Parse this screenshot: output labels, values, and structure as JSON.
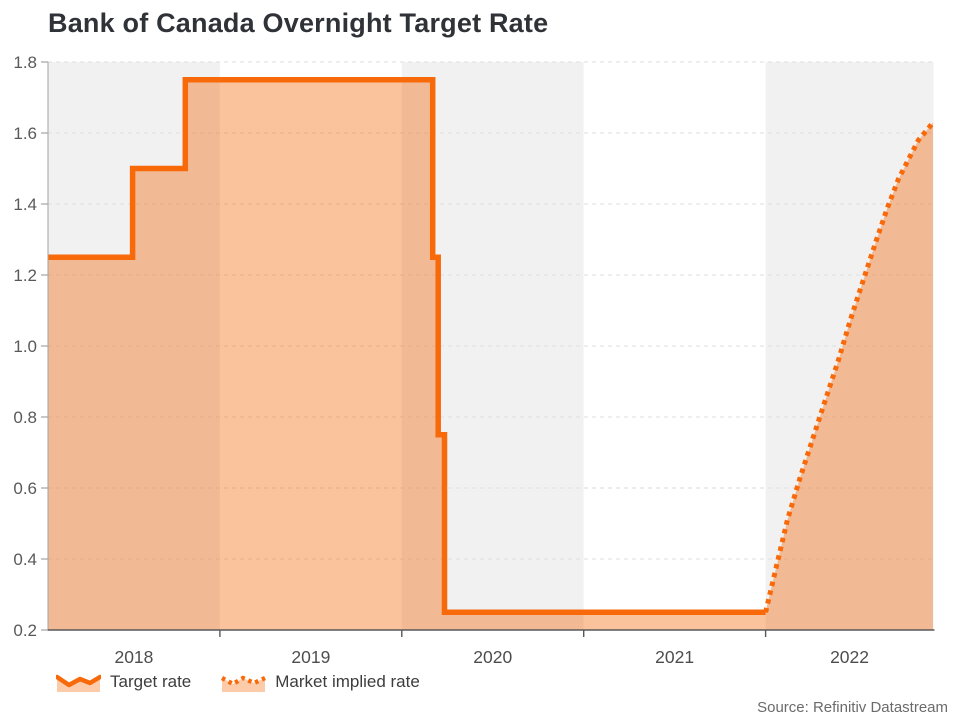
{
  "title": "Bank of Canada Overnight Target Rate",
  "source": "Source: Refinitiv Datastream",
  "legend": {
    "target_rate_label": "Target rate",
    "market_implied_label": "Market implied rate"
  },
  "colors": {
    "line": "#f8690a",
    "area_fill": "rgba(246,105,8,0.40)",
    "legend_fill": "rgba(246,105,8,0.35)",
    "band_gray": "#f1f1f2",
    "band_white": "#ffffff",
    "gridline": "#dedede",
    "axis_line": "#58585a",
    "y_axis_line": "#a3a3a3",
    "tick_label": "#58595b",
    "year_label": "#4d4d4d",
    "title_text": "#2f3237"
  },
  "chart_data": {
    "type": "area",
    "title": "Bank of Canada Overnight Target Rate",
    "xlabel": "",
    "ylabel": "",
    "xlim": [
      2018.055,
      2022.923
    ],
    "ylim": [
      0.2,
      1.8
    ],
    "yticks": [
      0.2,
      0.4,
      0.6,
      0.8,
      1.0,
      1.2,
      1.4,
      1.6,
      1.8
    ],
    "xticks": [
      2019,
      2020,
      2021,
      2022
    ],
    "grid": "dashed-horizontal",
    "legend_position": "bottom-left",
    "bands": [
      {
        "label": "2018",
        "x0": 2018.055,
        "x1": 2019,
        "shade": "gray"
      },
      {
        "label": "2019",
        "x0": 2019,
        "x1": 2020,
        "shade": "white"
      },
      {
        "label": "2020",
        "x0": 2020,
        "x1": 2021,
        "shade": "gray"
      },
      {
        "label": "2021",
        "x0": 2021,
        "x1": 2022,
        "shade": "white"
      },
      {
        "label": "2022",
        "x0": 2022,
        "x1": 2022.923,
        "shade": "gray"
      }
    ],
    "series": [
      {
        "name": "Target rate",
        "style": "solid",
        "points": [
          [
            2018.055,
            1.25
          ],
          [
            2018.52,
            1.25
          ],
          [
            2018.52,
            1.5
          ],
          [
            2018.81,
            1.5
          ],
          [
            2018.81,
            1.75
          ],
          [
            2020.17,
            1.75
          ],
          [
            2020.17,
            1.25
          ],
          [
            2020.2,
            1.25
          ],
          [
            2020.2,
            0.75
          ],
          [
            2020.235,
            0.75
          ],
          [
            2020.235,
            0.25
          ],
          [
            2022.0,
            0.25
          ]
        ]
      },
      {
        "name": "Market implied rate",
        "style": "dotted",
        "points": [
          [
            2022.0,
            0.25
          ],
          [
            2022.06,
            0.38
          ],
          [
            2022.12,
            0.51
          ],
          [
            2022.19,
            0.63
          ],
          [
            2022.26,
            0.74
          ],
          [
            2022.33,
            0.85
          ],
          [
            2022.4,
            0.96
          ],
          [
            2022.47,
            1.08
          ],
          [
            2022.54,
            1.19
          ],
          [
            2022.61,
            1.3
          ],
          [
            2022.67,
            1.39
          ],
          [
            2022.73,
            1.47
          ],
          [
            2022.79,
            1.53
          ],
          [
            2022.84,
            1.58
          ],
          [
            2022.89,
            1.61
          ],
          [
            2022.92,
            1.63
          ]
        ]
      }
    ]
  }
}
